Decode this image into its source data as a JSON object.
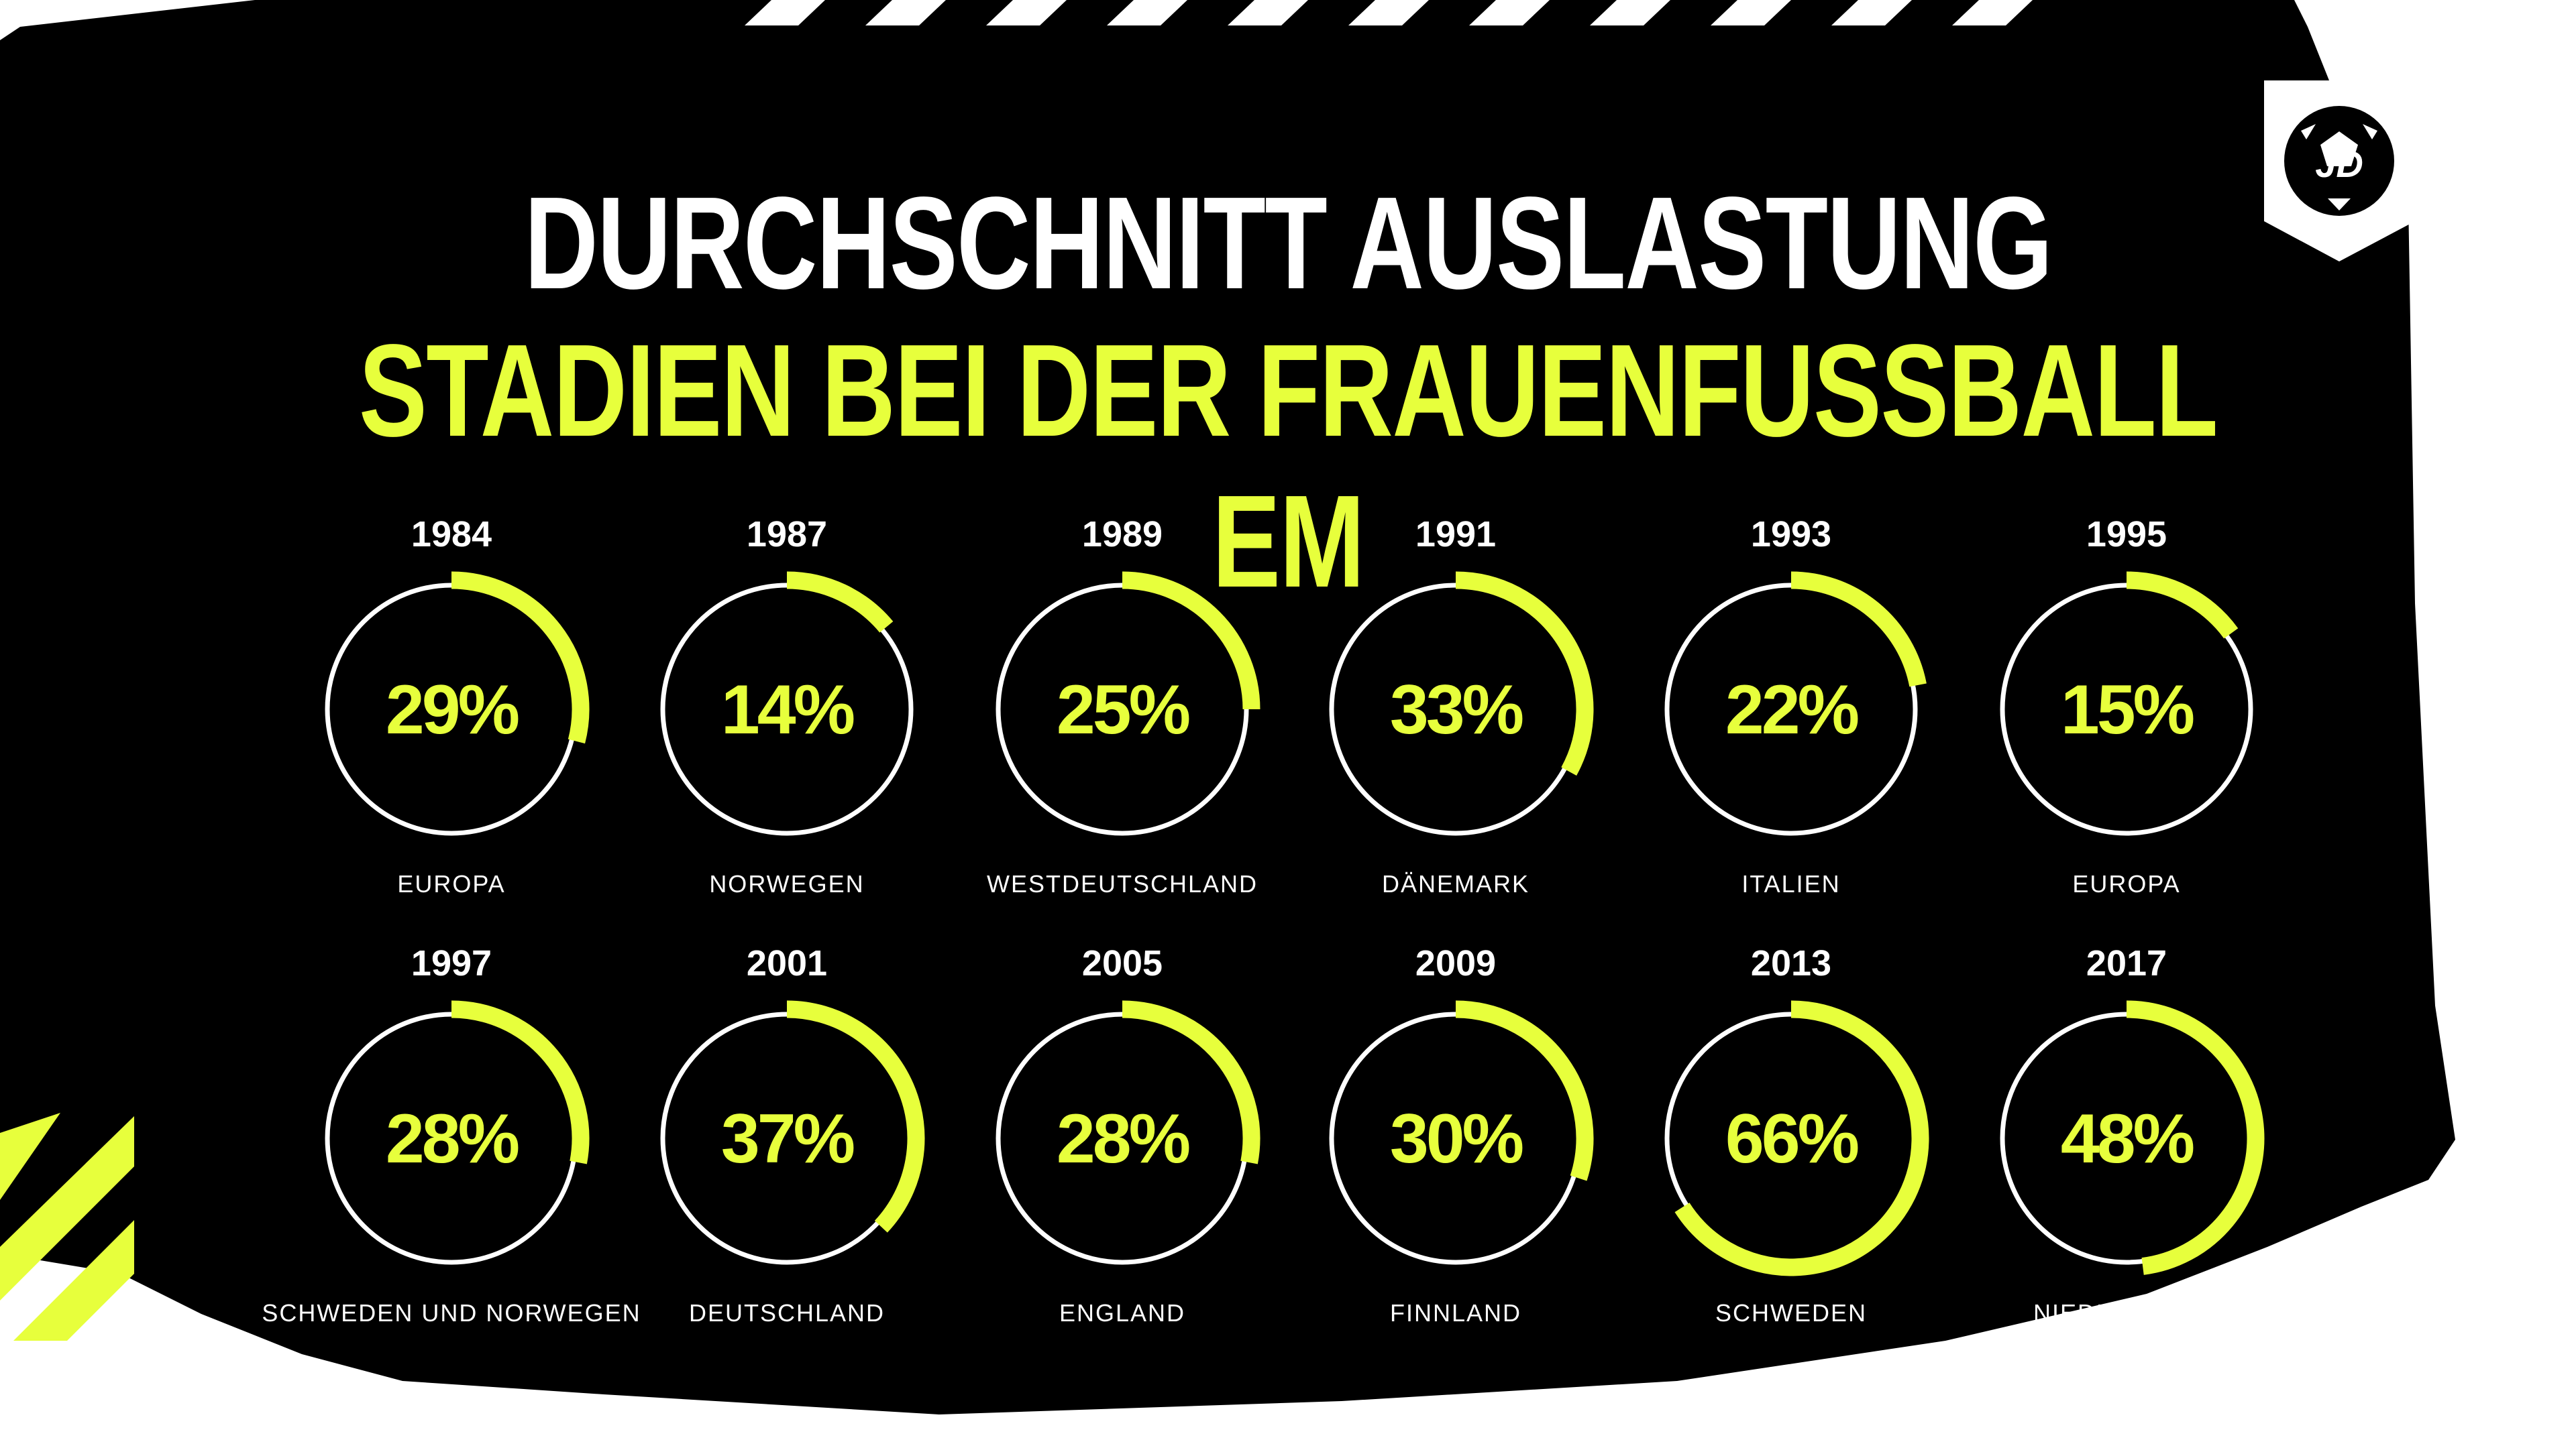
{
  "header": {
    "title_line_1": "DURCHSCHNITT AUSLASTUNG",
    "title_line_2": "STADIEN BEI DER FRAUENFUSSBALL EM"
  },
  "logo": {
    "text": "JD",
    "icon": "football-icon"
  },
  "colors": {
    "background": "#000000",
    "accent": "#e7ff3c",
    "ring": "#ffffff",
    "label": "#ffffff"
  },
  "chart_data": {
    "type": "donut-grid",
    "unit": "%",
    "items": [
      {
        "year": "1984",
        "value": 29,
        "label": "29%",
        "host": "EUROPA"
      },
      {
        "year": "1987",
        "value": 14,
        "label": "14%",
        "host": "NORWEGEN"
      },
      {
        "year": "1989",
        "value": 25,
        "label": "25%",
        "host": "WESTDEUTSCHLAND"
      },
      {
        "year": "1991",
        "value": 33,
        "label": "33%",
        "host": "DÄNEMARK"
      },
      {
        "year": "1993",
        "value": 22,
        "label": "22%",
        "host": "ITALIEN"
      },
      {
        "year": "1995",
        "value": 15,
        "label": "15%",
        "host": "EUROPA"
      },
      {
        "year": "1997",
        "value": 28,
        "label": "28%",
        "host": "SCHWEDEN UND NORWEGEN"
      },
      {
        "year": "2001",
        "value": 37,
        "label": "37%",
        "host": "DEUTSCHLAND"
      },
      {
        "year": "2005",
        "value": 28,
        "label": "28%",
        "host": "ENGLAND"
      },
      {
        "year": "2009",
        "value": 30,
        "label": "30%",
        "host": "FINNLAND"
      },
      {
        "year": "2013",
        "value": 66,
        "label": "66%",
        "host": "SCHWEDEN"
      },
      {
        "year": "2017",
        "value": 48,
        "label": "48%",
        "host": "NIEDERLANDE"
      }
    ]
  }
}
